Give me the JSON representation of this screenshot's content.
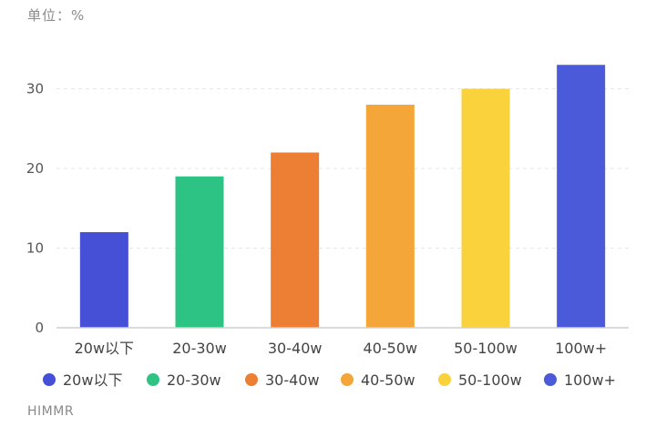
{
  "unit_label": "单位：%",
  "source": "HIMMR",
  "colors": {
    "grid": "#e6e6e6",
    "axis": "#cfcfcf"
  },
  "chart_data": {
    "type": "bar",
    "title": "",
    "xlabel": "",
    "ylabel": "单位：%",
    "categories": [
      "20w以下",
      "20-30w",
      "30-40w",
      "40-50w",
      "50-100w",
      "100w+"
    ],
    "values": [
      12,
      19,
      22,
      28,
      30,
      33
    ],
    "bar_colors": [
      "#4650d6",
      "#2dc384",
      "#ec7f34",
      "#f4a638",
      "#f9d23c",
      "#4a5ad8"
    ],
    "yticks": [
      0,
      10,
      20,
      30
    ],
    "ylim": [
      0,
      35
    ],
    "grid": true,
    "legend": {
      "placement": "bottom",
      "entries": [
        "20w以下",
        "20-30w",
        "30-40w",
        "40-50w",
        "50-100w",
        "100w+"
      ]
    }
  }
}
